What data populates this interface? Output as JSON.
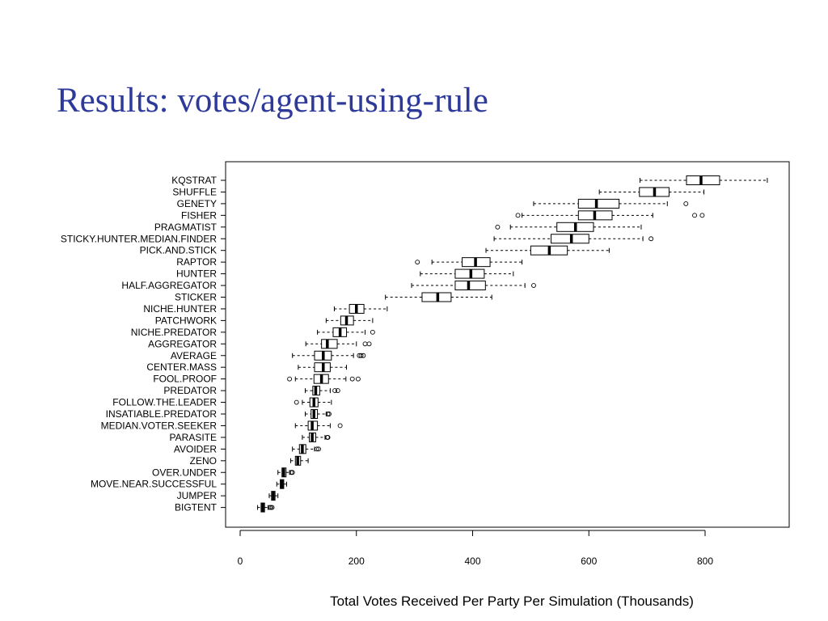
{
  "slide": {
    "title": "Results: votes/agent-using-rule"
  },
  "chart_data": {
    "type": "boxplot",
    "orientation": "horizontal",
    "title": "",
    "xlabel": "Total Votes Received Per Party Per Simulation (Thousands)",
    "ylabel": "",
    "xlim": [
      -5,
      945
    ],
    "xticks": [
      0,
      200,
      400,
      600,
      800
    ],
    "grid": false,
    "legend": "none",
    "colors": {
      "box": "#000000",
      "background": "#ffffff",
      "title": "#2e3a9a"
    },
    "series": [
      {
        "label": "KQSTRAT",
        "whisker_low": 688,
        "q1": 768,
        "median": 793,
        "q3": 825,
        "whisker_high": 907,
        "outliers": []
      },
      {
        "label": "SHUFFLE",
        "whisker_low": 618,
        "q1": 687,
        "median": 713,
        "q3": 738,
        "whisker_high": 798,
        "outliers": []
      },
      {
        "label": "GENETY",
        "whisker_low": 505,
        "q1": 582,
        "median": 613,
        "q3": 652,
        "whisker_high": 735,
        "outliers": [
          767
        ]
      },
      {
        "label": "FISHER",
        "whisker_low": 485,
        "q1": 582,
        "median": 610,
        "q3": 640,
        "whisker_high": 710,
        "outliers": [
          478,
          782,
          795
        ]
      },
      {
        "label": "PRAGMATIST",
        "whisker_low": 465,
        "q1": 545,
        "median": 577,
        "q3": 608,
        "whisker_high": 690,
        "outliers": [
          443
        ]
      },
      {
        "label": "STICKY.HUNTER.MEDIAN.FINDER",
        "whisker_low": 437,
        "q1": 535,
        "median": 570,
        "q3": 600,
        "whisker_high": 693,
        "outliers": [
          707
        ]
      },
      {
        "label": "PICK.AND.STICK",
        "whisker_low": 423,
        "q1": 500,
        "median": 532,
        "q3": 563,
        "whisker_high": 635,
        "outliers": []
      },
      {
        "label": "RAPTOR",
        "whisker_low": 330,
        "q1": 382,
        "median": 405,
        "q3": 430,
        "whisker_high": 485,
        "outliers": [
          305
        ]
      },
      {
        "label": "HUNTER",
        "whisker_low": 310,
        "q1": 370,
        "median": 397,
        "q3": 420,
        "whisker_high": 470,
        "outliers": []
      },
      {
        "label": "HALF.AGGREGATOR",
        "whisker_low": 295,
        "q1": 370,
        "median": 393,
        "q3": 422,
        "whisker_high": 490,
        "outliers": [
          505
        ]
      },
      {
        "label": "STICKER",
        "whisker_low": 250,
        "q1": 313,
        "median": 340,
        "q3": 363,
        "whisker_high": 433,
        "outliers": []
      },
      {
        "label": "NICHE.HUNTER",
        "whisker_low": 162,
        "q1": 188,
        "median": 200,
        "q3": 213,
        "whisker_high": 253,
        "outliers": []
      },
      {
        "label": "PATCHWORK",
        "whisker_low": 148,
        "q1": 173,
        "median": 183,
        "q3": 195,
        "whisker_high": 228,
        "outliers": []
      },
      {
        "label": "NICHE.PREDATOR",
        "whisker_low": 133,
        "q1": 160,
        "median": 172,
        "q3": 183,
        "whisker_high": 215,
        "outliers": [
          228
        ]
      },
      {
        "label": "AGGREGATOR",
        "whisker_low": 113,
        "q1": 140,
        "median": 150,
        "q3": 167,
        "whisker_high": 200,
        "outliers": [
          215,
          222
        ]
      },
      {
        "label": "AVERAGE",
        "whisker_low": 90,
        "q1": 128,
        "median": 143,
        "q3": 157,
        "whisker_high": 195,
        "outliers": [
          205,
          208,
          212
        ]
      },
      {
        "label": "CENTER.MASS",
        "whisker_low": 100,
        "q1": 128,
        "median": 143,
        "q3": 155,
        "whisker_high": 183,
        "outliers": []
      },
      {
        "label": "FOOL.PROOF",
        "whisker_low": 95,
        "q1": 127,
        "median": 140,
        "q3": 152,
        "whisker_high": 182,
        "outliers": [
          85,
          193,
          203
        ]
      },
      {
        "label": "PREDATOR",
        "whisker_low": 112,
        "q1": 125,
        "median": 130,
        "q3": 137,
        "whisker_high": 155,
        "outliers": [
          163,
          168
        ]
      },
      {
        "label": "FOLLOW.THE.LEADER",
        "whisker_low": 107,
        "q1": 120,
        "median": 127,
        "q3": 134,
        "whisker_high": 157,
        "outliers": [
          97
        ]
      },
      {
        "label": "INSATIABLE.PREDATOR",
        "whisker_low": 112,
        "q1": 122,
        "median": 127,
        "q3": 133,
        "whisker_high": 148,
        "outliers": [
          151,
          153
        ]
      },
      {
        "label": "MEDIAN.VOTER.SEEKER",
        "whisker_low": 95,
        "q1": 117,
        "median": 124,
        "q3": 133,
        "whisker_high": 155,
        "outliers": [
          172
        ]
      },
      {
        "label": "PARASITE",
        "whisker_low": 107,
        "q1": 119,
        "median": 124,
        "q3": 130,
        "whisker_high": 146,
        "outliers": [
          150,
          151
        ]
      },
      {
        "label": "AVOIDER",
        "whisker_low": 90,
        "q1": 102,
        "median": 107,
        "q3": 113,
        "whisker_high": 128,
        "outliers": [
          132,
          135
        ]
      },
      {
        "label": "ZENO",
        "whisker_low": 87,
        "q1": 95,
        "median": 99,
        "q3": 104,
        "whisker_high": 117,
        "outliers": []
      },
      {
        "label": "OVER.UNDER",
        "whisker_low": 65,
        "q1": 72,
        "median": 75,
        "q3": 79,
        "whisker_high": 85,
        "outliers": [
          88,
          90
        ]
      },
      {
        "label": "MOVE.NEAR.SUCCESSFUL",
        "whisker_low": 63,
        "q1": 69,
        "median": 72,
        "q3": 75,
        "whisker_high": 80,
        "outliers": []
      },
      {
        "label": "JUMPER",
        "whisker_low": 50,
        "q1": 54,
        "median": 57,
        "q3": 60,
        "whisker_high": 65,
        "outliers": []
      },
      {
        "label": "BIGTENT",
        "whisker_low": 30,
        "q1": 36,
        "median": 39,
        "q3": 42,
        "whisker_high": 48,
        "outliers": [
          51,
          53,
          55
        ]
      }
    ]
  }
}
